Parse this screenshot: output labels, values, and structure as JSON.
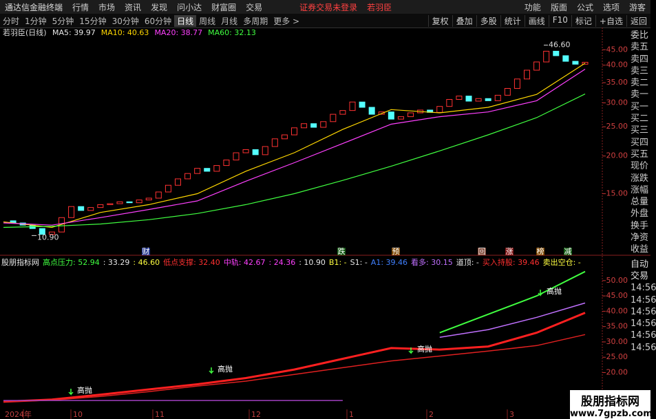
{
  "app_bar": {
    "title": "通达信金融终端",
    "menu": [
      "行情",
      "市场",
      "资讯",
      "发现",
      "问小达",
      "财富圈",
      "交易"
    ],
    "status": "证券交易未登录",
    "stock": "若羽臣",
    "right_menu": [
      "功能",
      "版面",
      "公式",
      "选项"
    ],
    "user": "游客"
  },
  "period_bar": {
    "periods": [
      "分时",
      "1分钟",
      "5分钟",
      "15分钟",
      "30分钟",
      "60分钟",
      "日线",
      "周线",
      "月线",
      "多周期",
      "更多 >"
    ],
    "active": "日线",
    "tools": [
      "复权",
      "叠加",
      "多股",
      "统计",
      "画线",
      "F10",
      "标记",
      "+自选",
      "返回"
    ]
  },
  "main_chart": {
    "title": "若羽臣(日线)",
    "ma_labels": [
      {
        "text": "MA5: 39.97",
        "color": "#e8e8e8"
      },
      {
        "text": "MA10: 40.63",
        "color": "#ffd700"
      },
      {
        "text": "MA20: 38.77",
        "color": "#ff40ff"
      },
      {
        "text": "MA60: 32.13",
        "color": "#40ff40"
      }
    ],
    "log": true,
    "ylim": [
      10.2,
      48
    ],
    "yticks": [
      {
        "value": 15,
        "label": "15.00"
      },
      {
        "value": 20,
        "label": "20.00"
      },
      {
        "value": 25,
        "label": "25.00"
      },
      {
        "value": 30,
        "label": "30.00"
      },
      {
        "value": 35,
        "label": "35.00"
      },
      {
        "value": 40,
        "label": "40.00"
      },
      {
        "value": 45,
        "label": "45.00"
      }
    ],
    "closes": [
      12.2,
      12.0,
      11.8,
      11.5,
      11.0,
      11.2,
      12.5,
      13.6,
      13.2,
      13.5,
      13.8,
      13.9,
      14.1,
      14.0,
      14.3,
      14.5,
      15.2,
      16.0,
      16.8,
      17.5,
      18.2,
      17.8,
      18.6,
      19.4,
      20.5,
      21.0,
      20.2,
      21.5,
      22.8,
      23.5,
      24.8,
      25.6,
      24.9,
      26.0,
      27.5,
      28.3,
      30.2,
      29.0,
      27.5,
      28.0,
      26.5,
      27.0,
      27.8,
      28.4,
      27.9,
      29.2,
      30.8,
      31.6,
      30.4,
      31.0,
      30.5,
      31.8,
      33.5,
      36.0,
      38.5,
      41.0,
      44.5,
      43.0,
      41.2,
      40.3,
      40.9
    ],
    "ma_x": [
      0,
      5,
      10,
      15,
      20,
      25,
      30,
      35,
      40,
      45,
      50,
      55,
      60
    ],
    "ma_lines": [
      {
        "color": "#ffd700",
        "values": [
          12.1,
          11.6,
          13.0,
          13.8,
          15.0,
          17.8,
          20.5,
          24.5,
          28.5,
          27.8,
          29.0,
          32.0,
          40.6
        ]
      },
      {
        "color": "#ff40ff",
        "values": [
          12.0,
          11.8,
          12.5,
          13.3,
          14.2,
          16.5,
          19.0,
          22.0,
          25.5,
          27.0,
          28.0,
          30.5,
          38.8
        ]
      },
      {
        "color": "#40ff40",
        "values": [
          11.6,
          11.7,
          11.9,
          12.3,
          12.9,
          13.8,
          15.0,
          16.6,
          18.5,
          20.8,
          23.5,
          26.8,
          32.1
        ]
      }
    ],
    "high_label": {
      "value": 46.6,
      "label": "46.60"
    },
    "low_label": {
      "value": 10.9,
      "label": "10.90"
    },
    "signals": [
      {
        "text": "财",
        "color": "#4060ff"
      },
      {
        "text": "跌",
        "color": "#20a020"
      },
      {
        "text": "预",
        "color": "#e08000"
      },
      {
        "text": "回",
        "color": "#d06040"
      },
      {
        "text": "涨",
        "color": "#e02020"
      },
      {
        "text": "榜",
        "color": "#e08000"
      },
      {
        "text": "减",
        "color": "#20a020"
      }
    ]
  },
  "indicator": {
    "header": [
      {
        "text": "股朋指标网",
        "color": "#e8e8e8"
      },
      {
        "text": "高点压力: 52.94",
        "color": "#40ff40"
      },
      {
        "text": ": 33.29",
        "color": "#e8e8e8"
      },
      {
        "text": ": 46.60",
        "color": "#ffff40"
      },
      {
        "text": "低点支撑: 32.40",
        "color": "#ff3030"
      },
      {
        "text": "中轨: 42.67",
        "color": "#ff40ff"
      },
      {
        "text": ": 24.36",
        "color": "#ff40ff"
      },
      {
        "text": ": 10.90",
        "color": "#e8e8e8"
      },
      {
        "text": "B1: -",
        "color": "#ffff40"
      },
      {
        "text": "S1: -",
        "color": "#e8e8e8"
      },
      {
        "text": "A1: 39.46",
        "color": "#4080ff"
      },
      {
        "text": "看多: 30.15",
        "color": "#c070ff"
      },
      {
        "text": "道顶: -",
        "color": "#e8e8e8"
      },
      {
        "text": "买入持股: 39.46",
        "color": "#ff3030"
      },
      {
        "text": "卖出空仓: -",
        "color": "#ffff40"
      }
    ],
    "ylim": [
      8,
      54
    ],
    "yticks": [
      {
        "value": 20,
        "label": "20.00"
      },
      {
        "value": 25,
        "label": "25.00"
      },
      {
        "value": 30,
        "label": "30.00"
      },
      {
        "value": 35,
        "label": "35.00"
      },
      {
        "value": 40,
        "label": "40.00"
      },
      {
        "value": 45,
        "label": "45.00"
      },
      {
        "value": 50,
        "label": "50.00"
      }
    ],
    "x": [
      0,
      5,
      10,
      15,
      20,
      25,
      30,
      35,
      40,
      45,
      50,
      55,
      60
    ],
    "lines": [
      {
        "color": "#ff2020",
        "width": 3,
        "values": [
          10.5,
          11.2,
          12.8,
          14.5,
          16.2,
          18.2,
          21,
          24.5,
          28,
          27.5,
          28.5,
          33,
          39.5
        ]
      },
      {
        "color": "#e02020",
        "width": 1.5,
        "values": [
          10.5,
          11,
          12.2,
          13.8,
          15.6,
          17.2,
          19.4,
          21.6,
          23.8,
          25.4,
          27,
          28.8,
          32.4
        ]
      },
      {
        "color": "#c070ff",
        "width": 1.5,
        "values": [
          null,
          null,
          null,
          null,
          null,
          null,
          null,
          null,
          null,
          31.5,
          34,
          38,
          42.7
        ]
      },
      {
        "color": "#40ff40",
        "width": 2,
        "values": [
          null,
          null,
          null,
          null,
          null,
          null,
          null,
          null,
          null,
          33,
          39,
          45,
          52.94
        ]
      },
      {
        "color": "#a040c0",
        "width": 1.5,
        "values": [
          10.9,
          10.9,
          10.9,
          10.9,
          10.9,
          10.9,
          10.9,
          10.9,
          null,
          null,
          null,
          null,
          null
        ]
      }
    ],
    "annotations": [
      "高抛",
      "高抛",
      "高抛",
      "高抛"
    ]
  },
  "side_panel": {
    "quote_labels": [
      "委比",
      "卖五",
      "卖四",
      "卖三",
      "卖二",
      "卖一",
      "买一",
      "买二",
      "买三",
      "买四",
      "买五",
      "现价",
      "涨跌",
      "涨幅",
      "总量",
      "外盘",
      "换手",
      "净资",
      "收益"
    ],
    "trade": [
      "自动",
      "交易"
    ],
    "times": [
      "14:56",
      "14:56",
      "14:56",
      "14:56",
      "14:56",
      "14:56"
    ]
  },
  "date_axis": [
    "2024年",
    "10",
    "11",
    "12",
    "1",
    "2",
    "3"
  ],
  "watermark": {
    "brand": "股朋指标网",
    "url": "www.7gpzb.com"
  }
}
